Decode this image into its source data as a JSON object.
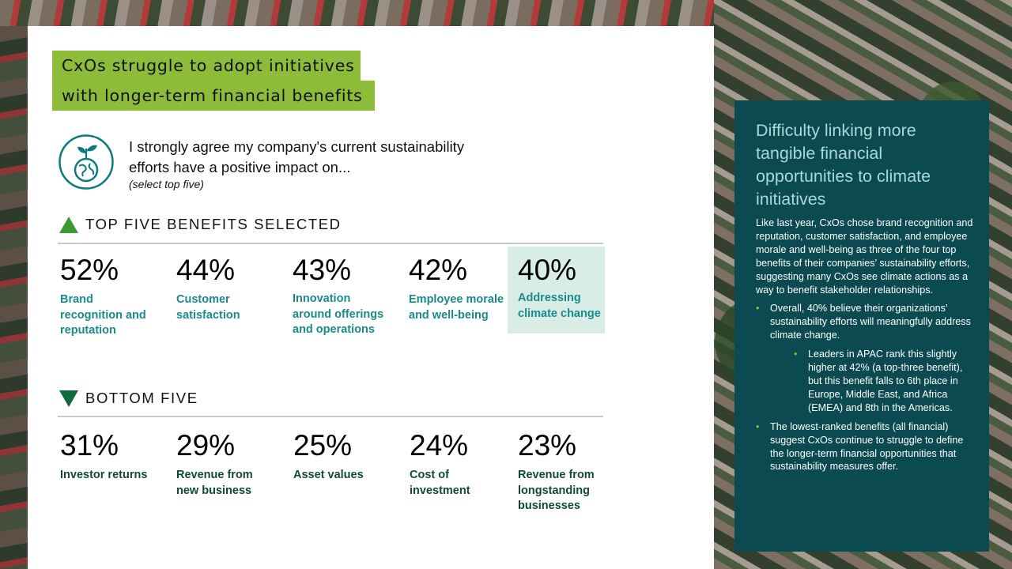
{
  "title": {
    "line1": "CxOs struggle to adopt initiatives",
    "line2": "with longer-term financial benefits"
  },
  "statement": {
    "line1": "I strongly agree my company's current sustainability",
    "line2": "efforts have a positive impact on...",
    "note": "(select top five)",
    "icon": "globe-plant-icon"
  },
  "top_section": {
    "heading": "TOP FIVE BENEFITS SELECTED",
    "items": [
      {
        "pct": "52%",
        "label": "Brand recognition and reputation"
      },
      {
        "pct": "44%",
        "label": "Customer satisfaction"
      },
      {
        "pct": "43%",
        "label": "Innovation around offerings and operations"
      },
      {
        "pct": "42%",
        "label": "Employee morale and well-being"
      },
      {
        "pct": "40%",
        "label": "Addressing climate change"
      }
    ]
  },
  "bottom_section": {
    "heading": "BOTTOM FIVE",
    "items": [
      {
        "pct": "31%",
        "label": "Investor returns"
      },
      {
        "pct": "29%",
        "label": "Revenue from new business"
      },
      {
        "pct": "25%",
        "label": "Asset values"
      },
      {
        "pct": "24%",
        "label": "Cost of investment"
      },
      {
        "pct": "23%",
        "label": "Revenue from longstanding businesses"
      }
    ]
  },
  "card": {
    "title": "Difficulty linking more tangible financial opportunities to climate initiatives",
    "intro": "Like last year, CxOs chose brand recognition and reputation, customer satisfaction, and employee morale and well-being as three of the four top benefits of their companies’ sustainability efforts, suggesting many CxOs see climate actions as a way to benefit stakeholder relationships.",
    "bullet1": "Overall, 40% believe their organizations’ sustainability efforts will meaningfully address climate change.",
    "sub_bullet": "Leaders in APAC rank this slightly higher at 42% (a top-three benefit), but this benefit falls to 6th place in Europe, Middle East, and Africa (EMEA) and 8th in the Americas.",
    "bullet2": "The lowest-ranked benefits (all financial) suggest CxOs continue to struggle to define the longer-term financial opportunities that sustainability measures offer."
  },
  "colors": {
    "title_bg": "#8cbc3a",
    "top_label": "#1a8a8c",
    "bottom_label": "#0f4a33",
    "card_bg": "#0b4a50",
    "card_title": "#a9d8d6",
    "highlight": "#d9ede7"
  }
}
